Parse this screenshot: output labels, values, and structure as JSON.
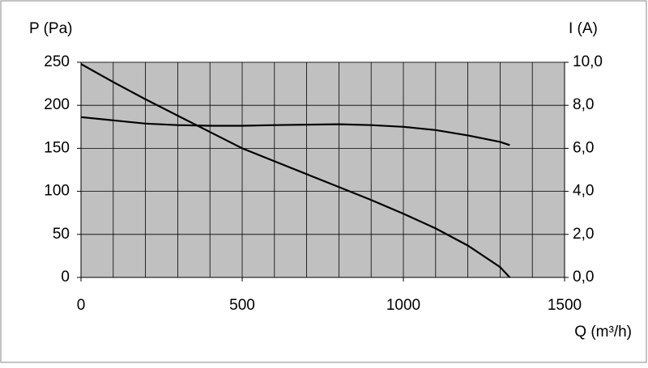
{
  "chart_data": {
    "type": "line",
    "y_label": "P (Pa)",
    "y2_label": "I (A)",
    "x_label": "Q (m³/h)",
    "x": [
      0,
      100,
      200,
      300,
      400,
      500,
      600,
      700,
      800,
      900,
      1000,
      1100,
      1200,
      1300,
      1330
    ],
    "series": [
      {
        "color": "#000000",
        "values": [
          248,
          227,
          207,
          188,
          169,
          150,
          135,
          120,
          105,
          90,
          74,
          57,
          37,
          12,
          0
        ]
      },
      {
        "color": "#000000",
        "axis": "y2",
        "values": [
          7.45,
          7.3,
          7.15,
          7.08,
          7.05,
          7.05,
          7.08,
          7.1,
          7.12,
          7.08,
          7.0,
          6.85,
          6.6,
          6.3,
          6.15
        ]
      }
    ],
    "xlim": [
      0,
      1500
    ],
    "xticks": [
      0,
      500,
      1000,
      1500
    ],
    "ylim": [
      0,
      250
    ],
    "yticks": [
      0,
      50,
      100,
      150,
      200,
      250
    ],
    "y2lim": [
      0,
      10
    ],
    "y2ticks": [
      {
        "value": 0,
        "label": "0,0"
      },
      {
        "value": 2,
        "label": "2,0"
      },
      {
        "value": 4,
        "label": "4,0"
      },
      {
        "value": 6,
        "label": "6,0"
      },
      {
        "value": 8,
        "label": "8,0"
      },
      {
        "value": 10,
        "label": "10,0"
      }
    ],
    "x_grid_step": 100,
    "grid": true,
    "plot_background": "#c0c0c0"
  }
}
